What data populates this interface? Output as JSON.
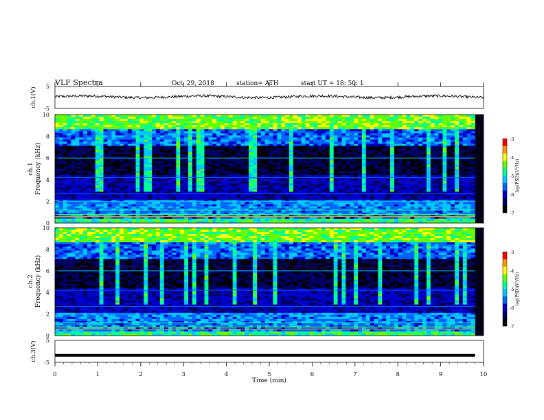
{
  "header": {
    "title": "VLF  Spectra",
    "date": "Oct. 29, 2018",
    "station": "station= ATH",
    "start": "start  UT  =    18: 50: 1"
  },
  "chart_data": [
    {
      "type": "line",
      "name": "ch1-waveform",
      "ylabel": "ch.1(V)",
      "ylim": [
        -5,
        5
      ],
      "yticks": [
        "5",
        "-5"
      ],
      "xlim": [
        0,
        10
      ],
      "approx_level": 0.3,
      "approx_amplitude": 1.2
    },
    {
      "type": "heatmap",
      "name": "ch1-spectrogram",
      "ylabel_line1": "ch.1",
      "ylabel_line2": "Frequency  (kHz)",
      "ylim": [
        0,
        10
      ],
      "yticks": [
        "0",
        "2",
        "4",
        "6",
        "8",
        "10"
      ],
      "xlim": [
        0,
        10
      ],
      "colorbar": {
        "label": "log(PSD)(V²/Hz)",
        "ticks": [
          "-3",
          "-4",
          "-5",
          "-6",
          "-7"
        ],
        "range": [
          -7,
          -3
        ]
      }
    },
    {
      "type": "heatmap",
      "name": "ch2-spectrogram",
      "ylabel_line1": "ch.2",
      "ylabel_line2": "Frequency  (kHz)",
      "ylim": [
        0,
        10
      ],
      "yticks": [
        "0",
        "2",
        "4",
        "6",
        "8",
        "10"
      ],
      "xlim": [
        0,
        10
      ],
      "colorbar": {
        "label": "log(PSD)(V²/Hz)",
        "ticks": [
          "-3",
          "-4",
          "-5",
          "-6",
          "-7"
        ],
        "range": [
          -7,
          -3
        ]
      }
    },
    {
      "type": "line",
      "name": "ch3-waveform",
      "ylabel": "ch.3(V)",
      "ylim": [
        -5,
        5
      ],
      "yticks": [
        "5",
        "-5"
      ],
      "xlim": [
        0,
        10
      ],
      "approx_level": -1.8,
      "approx_amplitude": 0
    }
  ],
  "xaxis": {
    "label": "Time  (min)",
    "ticks": [
      "0",
      "1",
      "2",
      "3",
      "4",
      "5",
      "6",
      "7",
      "8",
      "9",
      "10"
    ],
    "xlim": [
      0,
      10
    ]
  },
  "colors": {
    "colormap": [
      "#000000",
      "#000060",
      "#0000c8",
      "#0064ff",
      "#00c8ff",
      "#00ff96",
      "#64ff00",
      "#ffff00",
      "#ff9600",
      "#ff0000",
      "#ffffff"
    ]
  }
}
